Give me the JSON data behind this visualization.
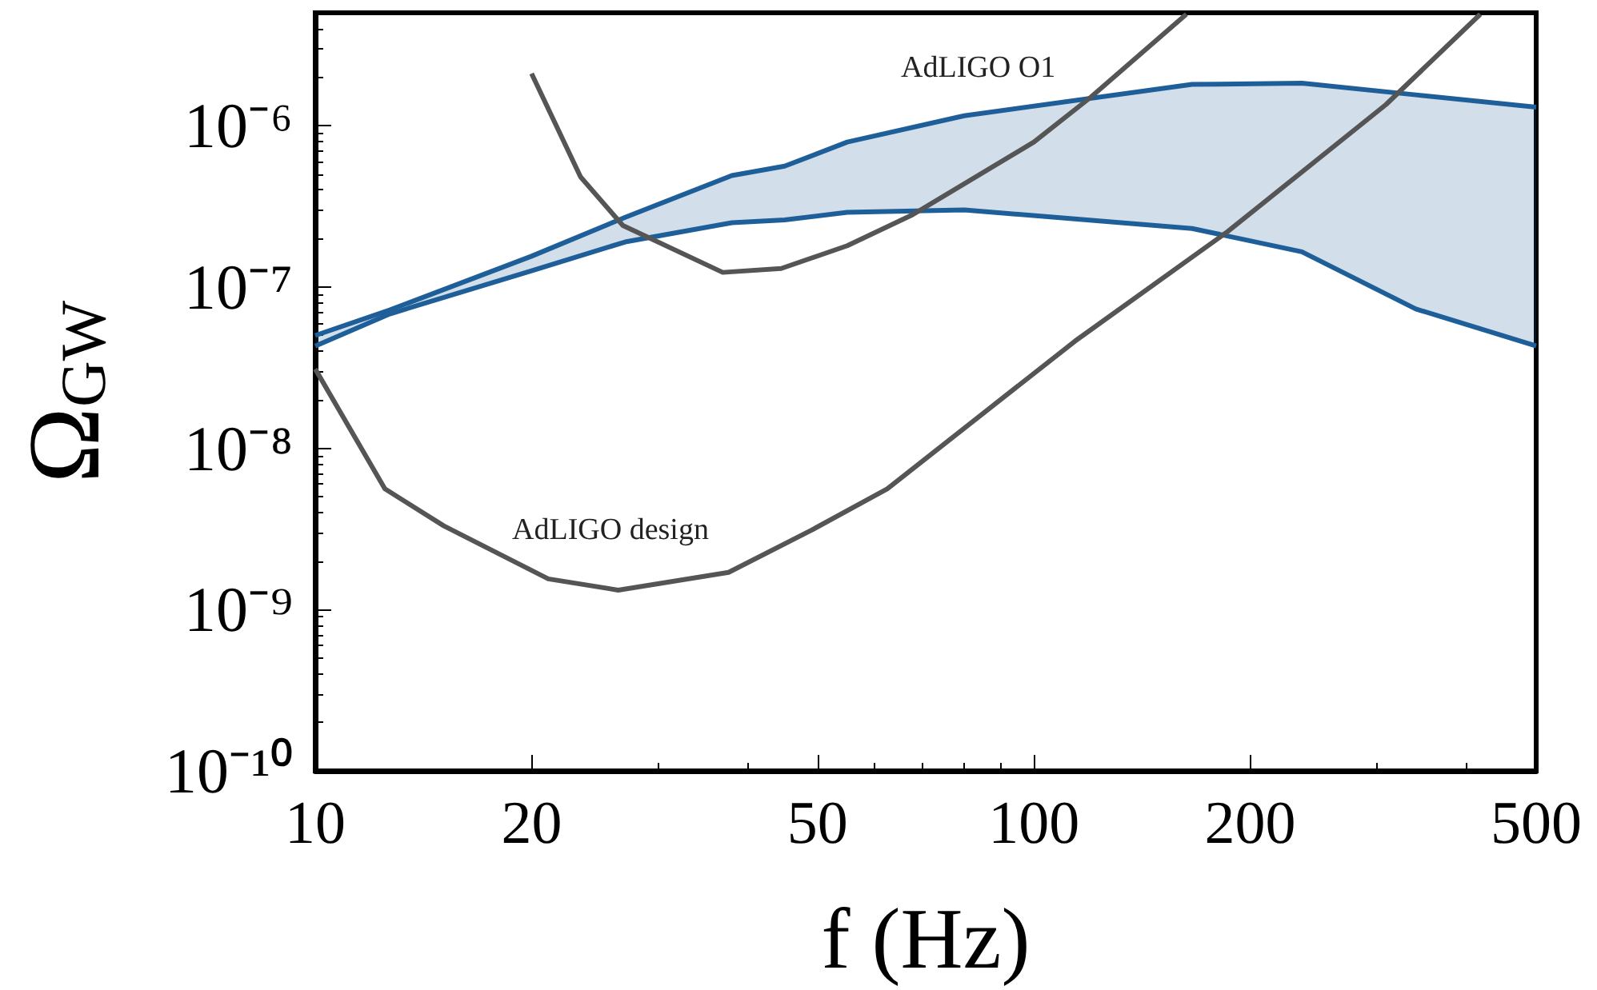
{
  "chart_data": {
    "type": "line",
    "xlabel": "f (Hz)",
    "ylabel": "Ω$_{GW}$",
    "log": "xy",
    "grid": false,
    "marker": "none",
    "line_style": "solid",
    "xlim": [
      10,
      500
    ],
    "ylim": [
      1e-10,
      5e-06
    ],
    "xticks": [
      10,
      20,
      50,
      100,
      200,
      500
    ],
    "yticks": [
      {
        "value": 1e-10,
        "label": "10⁻¹⁰"
      },
      {
        "value": 1e-09,
        "label": "10⁻⁹"
      },
      {
        "value": 1e-08,
        "label": "10⁻⁸"
      },
      {
        "value": 1e-07,
        "label": "10⁻⁷"
      },
      {
        "value": 1e-06,
        "label": "10⁻⁶"
      }
    ],
    "series": [
      {
        "color": "#1f5f99",
        "x": [
          10,
          12.7,
          20,
          27,
          38,
          45,
          55,
          80,
          166,
          236,
          340,
          500
        ],
        "values": [
          5e-08,
          7.2e-08,
          1.55e-07,
          2.7e-07,
          4.9e-07,
          5.6e-07,
          7.9e-07,
          1.15e-06,
          1.8e-06,
          1.83e-06,
          1.55e-06,
          1.3e-06
        ],
        "upper": [
          5e-08,
          7.2e-08,
          1.55e-07,
          2.7e-07,
          4.9e-07,
          5.6e-07,
          7.9e-07,
          1.15e-06,
          1.8e-06,
          1.83e-06,
          1.55e-06,
          1.3e-06
        ],
        "lower": [
          4.3e-08,
          6.8e-08,
          1.26e-07,
          1.9e-07,
          2.5e-07,
          2.6e-07,
          2.9e-07,
          3e-07,
          2.3e-07,
          1.65e-07,
          7.3e-08,
          4.3e-08
        ]
      },
      {
        "color": "#1f5f99",
        "x": [
          10,
          12.7,
          20,
          27,
          38,
          45,
          55,
          80,
          166,
          236,
          340,
          500
        ],
        "values": [
          4.3e-08,
          6.8e-08,
          1.26e-07,
          1.9e-07,
          2.5e-07,
          2.6e-07,
          2.9e-07,
          3e-07,
          2.3e-07,
          1.65e-07,
          7.3e-08,
          4.3e-08
        ]
      },
      {
        "color": "#555555",
        "x": [
          20,
          23.4,
          26.8,
          36.9,
          44.5,
          55,
          67.8,
          100,
          120,
          163
        ],
        "values": [
          2.1e-06,
          4.8e-07,
          2.4e-07,
          1.23e-07,
          1.3e-07,
          1.8e-07,
          2.8e-07,
          7.9e-07,
          1.5e-06,
          4.9e-06
        ]
      },
      {
        "color": "#555555",
        "x": [
          10,
          12.5,
          15.1,
          21.1,
          26.4,
          37.6,
          49,
          62.5,
          114,
          186,
          309,
          418
        ],
        "values": [
          3.1e-08,
          5.6e-09,
          3.3e-09,
          1.55e-09,
          1.32e-09,
          1.7e-09,
          3.1e-09,
          5.6e-09,
          4.6e-08,
          2.2e-07,
          1.35e-06,
          4.9e-06
        ]
      }
    ],
    "annotations": [
      "AdLIGO O1",
      "AdLIGO design"
    ]
  }
}
